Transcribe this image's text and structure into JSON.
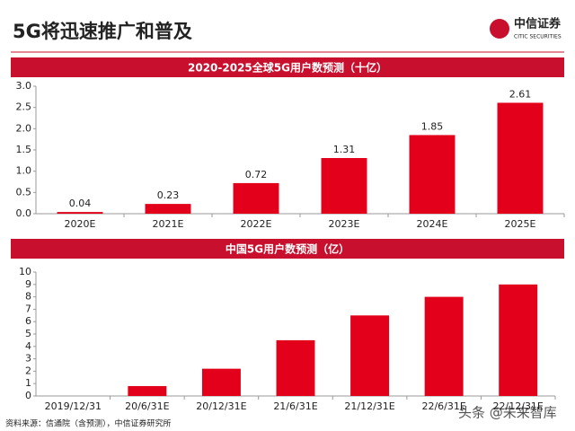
{
  "header": {
    "title": "5G将迅速推广和普及",
    "logo": "中信证券",
    "logo_sub": "CITIC SECURITIES"
  },
  "chart_data": [
    {
      "type": "bar",
      "title": "2020-2025全球5G用户数预测（十亿）",
      "categories": [
        "2020E",
        "2021E",
        "2022E",
        "2023E",
        "2024E",
        "2025E"
      ],
      "values": [
        0.04,
        0.23,
        0.72,
        1.31,
        1.85,
        2.61
      ],
      "color": "#e2001a",
      "data_labels": true,
      "ylim": [
        0,
        3
      ],
      "yticks": [
        {
          "value": 0,
          "label": "0.0"
        },
        0.5,
        {
          "value": 1,
          "label": "1.0"
        },
        1.5,
        {
          "value": 2,
          "label": "2.0"
        },
        2.5,
        {
          "value": 3,
          "label": "3.0"
        }
      ]
    },
    {
      "type": "bar",
      "title": "中国5G用户数预测（亿）",
      "categories": [
        "2019/12/31",
        "20/6/31E",
        "20/12/31E",
        "21/6/31E",
        "21/12/31E",
        "22/6/31E",
        "22/12/31E"
      ],
      "values": [
        0,
        0.8,
        2.2,
        4.5,
        6.5,
        8,
        9
      ],
      "color": "#e2001a",
      "data_labels": false,
      "ylim": [
        0,
        10
      ],
      "yticks": [
        0,
        1,
        2,
        3,
        4,
        5,
        6,
        7,
        8,
        9,
        10
      ]
    }
  ],
  "source": "资料来源：信通院（含预测），中信证券研究所",
  "watermark": "头条 @未来智库"
}
